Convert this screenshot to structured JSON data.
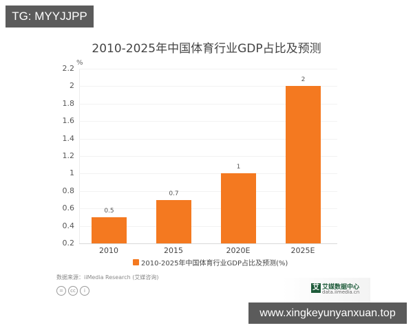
{
  "watermark": {
    "tg_label": "TG: MYYJJPP",
    "url_label": "www.xingkeyunyanxuan.top"
  },
  "chart": {
    "title": "2010-2025年中国体育行业GDP占比及预测",
    "unit": "%",
    "y_ticks": [
      "2.2",
      "2",
      "1.8",
      "1.6",
      "1.4",
      "1.2",
      "1",
      "0.8",
      "0.6",
      "0.4",
      "0.2"
    ],
    "bar_color": "#f47920",
    "legend_label": "2010-2025年中国体育行业GDP占比及预测(%)",
    "source": "数据来源：iiMedia Research (艾媒咨询)",
    "license_icons": [
      "=",
      "cc",
      "i"
    ],
    "logo": {
      "mark": "艾",
      "name": "艾媒数据中心",
      "url": "data.iimedia.cn"
    }
  },
  "chart_data": {
    "type": "bar",
    "title": "2010-2025年中国体育行业GDP占比及预测",
    "categories": [
      "2010",
      "2015",
      "2020E",
      "2025E"
    ],
    "values": [
      0.5,
      0.7,
      1,
      2
    ],
    "value_labels": [
      "0.5",
      "0.7",
      "1",
      "2"
    ],
    "series": [
      {
        "name": "2010-2025年中国体育行业GDP占比及预测(%)",
        "values": [
          0.5,
          0.7,
          1,
          2
        ]
      }
    ],
    "xlabel": "",
    "ylabel": "%",
    "ylim": [
      0.2,
      2.2
    ],
    "y_ticks": [
      0.2,
      0.4,
      0.6,
      0.8,
      1,
      1.2,
      1.4,
      1.6,
      1.8,
      2,
      2.2
    ],
    "grid": true,
    "legend_position": "bottom",
    "source": "数据来源：iiMedia Research (艾媒咨询)"
  }
}
